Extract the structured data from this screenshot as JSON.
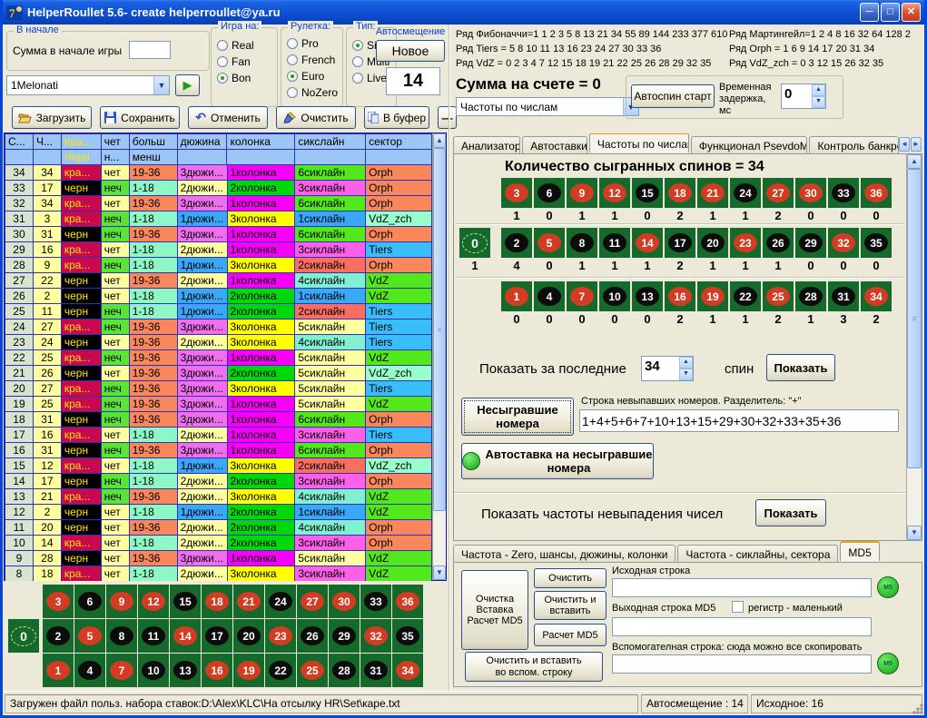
{
  "window": {
    "title": "HelperRoullet 5.6- create helperroullet@ya.ru"
  },
  "colors": {
    "red_cell": "#C9094E",
    "black_cell": "#000000",
    "cell_text_yellow": "#FFE400",
    "even": "#FFFFA0",
    "odd": "#5BE438",
    "low": "#8FF7C6",
    "high": "#F8875C",
    "dozen1": "#3AA7F8",
    "dozen2": "#FFFFA0",
    "dozen3": "#EF6FEF",
    "col1": "#F800F8",
    "col2": "#00D80C",
    "col3": "#FFFF00",
    "six1": "#3AA7F8",
    "six2": "#F86F60",
    "six3": "#FA60E8",
    "six4": "#80F0D0",
    "six5": "#FFFFA0",
    "six6": "#52E81C",
    "sector_Orph": "#F8875C",
    "sector_VdZ": "#52E81C",
    "sector_Tiers": "#38BEF8",
    "sector_VdZ_zch": "#98FFC8",
    "header": "#9CC6F8",
    "spin_col": "#D6E4D0",
    "num_col": "#FFFFA0",
    "board_green": "#15692A",
    "red_circle": "#D13C22",
    "black_circle": "#0C0C0C"
  },
  "top_left": {
    "start_group": {
      "legend": "В начале",
      "label": "Сумма в начале игры",
      "input_value": ""
    },
    "preset_combo": {
      "value": "1Melonati"
    },
    "groups": [
      {
        "legend": "Игра на:",
        "options": [
          "Real",
          "Fan",
          "Bon"
        ],
        "selected": "Bon"
      },
      {
        "legend": "Рулетка:",
        "options": [
          "Pro",
          "French",
          "Euro",
          "NoZero"
        ],
        "selected": "Euro"
      },
      {
        "legend": "Тип:",
        "options": [
          "Singl",
          "Multi",
          "Live"
        ],
        "selected": "Singl"
      }
    ],
    "autoshift": {
      "label": "Автосмещение",
      "button": "Новое",
      "value": "14"
    },
    "toolbar": [
      "Загрузить",
      "Сохранить",
      "Отменить",
      "Очистить",
      "В буфер",
      "—"
    ]
  },
  "series_info": {
    "left": [
      "Ряд Фибоначчи=1 1 2 3 5 8 13 21 34 55 89 144 233 377 610",
      "Ряд Tiers = 5 8 10 11 13 16 23 24 27 30 33 36",
      "Ряд VdZ = 0 2 3 4 7 12 15 18 19 21 22 25 26 28 29 32 35"
    ],
    "right": [
      "Ряд Мартингейл=1 2 4 8 16 32 64 128 2",
      "Ряд Orph = 1 6 9 14 17 20 31 34",
      "Ряд VdZ_zch = 0 3 12 15 26 32 35"
    ]
  },
  "account": {
    "sum_label": "Сумма на счете = 0",
    "mode_combo": "Частоты по числам",
    "autospin_button": "Автоспин старт",
    "delay_label": "Временная задержка, мс",
    "delay_value": "0"
  },
  "tabs": {
    "items": [
      "Анализатор",
      "Автоставки",
      "Частоты по числам",
      "Функционал PsevdoMS",
      "Контроль банкро"
    ],
    "active": "Частоты по числам"
  },
  "freq_tab": {
    "title": "Количество сыгранных спинов = 34",
    "board": {
      "zero": {
        "number": 0,
        "freq": 1
      },
      "rows": [
        {
          "numbers": [
            3,
            6,
            9,
            12,
            15,
            18,
            21,
            24,
            27,
            30,
            33,
            36
          ],
          "freqs": [
            1,
            0,
            1,
            1,
            0,
            2,
            1,
            1,
            2,
            0,
            0,
            0
          ]
        },
        {
          "numbers": [
            2,
            5,
            8,
            11,
            14,
            17,
            20,
            23,
            26,
            29,
            32,
            35
          ],
          "freqs": [
            4,
            0,
            1,
            1,
            1,
            2,
            1,
            1,
            1,
            0,
            0,
            0
          ]
        },
        {
          "numbers": [
            1,
            4,
            7,
            10,
            13,
            16,
            19,
            22,
            25,
            28,
            31,
            34
          ],
          "freqs": [
            0,
            0,
            0,
            0,
            0,
            2,
            1,
            1,
            2,
            1,
            3,
            2
          ]
        }
      ],
      "red_numbers": [
        1,
        3,
        5,
        7,
        9,
        12,
        14,
        16,
        18,
        19,
        21,
        23,
        25,
        27,
        30,
        32,
        34,
        36
      ]
    },
    "show_last": {
      "label_before": "Показать за последние",
      "value": "34",
      "label_after": "спин",
      "button": "Показать"
    },
    "missed": {
      "button": "Несыгравшие номера",
      "input_label": "Строка невыпавших номеров. Разделитель: \"+\"",
      "input_value": "1+4+5+6+7+10+13+15+29+30+32+33+35+36",
      "autobet_button": "Автоставка на несыгравшие номера"
    },
    "freq_missed": {
      "label": "Показать частоты невыпадения чисел",
      "button": "Показать"
    }
  },
  "bottom_tabs": {
    "items": [
      "Частота - Zero, шансы, дюжины, колонки",
      "Частота - сиклайны, сектора",
      "MD5"
    ],
    "active": "MD5"
  },
  "md5": {
    "big_button": "Очистка\nВставка\nРасчет MD5",
    "buttons": [
      "Очистить",
      "Очистить и вставить",
      "Расчет MD5"
    ],
    "bottom_button": "Очистить и  вставить\nво вспом. строку",
    "source_label": "Исходная строка",
    "source_value": "",
    "out_label": "Выходная строка MD5",
    "out_value": "",
    "case_checkbox": "регистр  - маленький",
    "aux_label": "Вспомогателная строка: сюда можно все скопировать",
    "aux_value": ""
  },
  "history_table": {
    "headers_line1": [
      "С...",
      "Ч...",
      "Кра...",
      "чет",
      "больш",
      "дюжина",
      "колонка",
      "сикслайн",
      "сектор"
    ],
    "headers_line2": [
      "",
      "",
      "Черн",
      "н...",
      "менш",
      "",
      "",
      "",
      ""
    ],
    "rows": [
      [
        34,
        34,
        "кра...",
        "чет",
        "19-36",
        "3дюжи...",
        "1колонка",
        "6сиклайн",
        "Orph"
      ],
      [
        33,
        17,
        "черн",
        "неч",
        "1-18",
        "2дюжи...",
        "2колонка",
        "3сиклайн",
        "Orph"
      ],
      [
        32,
        34,
        "кра...",
        "чет",
        "19-36",
        "3дюжи...",
        "1колонка",
        "6сиклайн",
        "Orph"
      ],
      [
        31,
        3,
        "кра...",
        "неч",
        "1-18",
        "1дюжи...",
        "3колонка",
        "1сиклайн",
        "VdZ_zch"
      ],
      [
        30,
        31,
        "черн",
        "неч",
        "19-36",
        "3дюжи...",
        "1колонка",
        "6сиклайн",
        "Orph"
      ],
      [
        29,
        16,
        "кра...",
        "чет",
        "1-18",
        "2дюжи...",
        "1колонка",
        "3сиклайн",
        "Tiers"
      ],
      [
        28,
        9,
        "кра...",
        "неч",
        "1-18",
        "1дюжи...",
        "3колонка",
        "2сиклайн",
        "Orph"
      ],
      [
        27,
        22,
        "черн",
        "чет",
        "19-36",
        "2дюжи...",
        "1колонка",
        "4сиклайн",
        "VdZ"
      ],
      [
        26,
        2,
        "черн",
        "чет",
        "1-18",
        "1дюжи...",
        "2колонка",
        "1сиклайн",
        "VdZ"
      ],
      [
        25,
        11,
        "черн",
        "неч",
        "1-18",
        "1дюжи...",
        "2колонка",
        "2сиклайн",
        "Tiers"
      ],
      [
        24,
        27,
        "кра...",
        "неч",
        "19-36",
        "3дюжи...",
        "3колонка",
        "5сиклайн",
        "Tiers"
      ],
      [
        23,
        24,
        "черн",
        "чет",
        "19-36",
        "2дюжи...",
        "3колонка",
        "4сиклайн",
        "Tiers"
      ],
      [
        22,
        25,
        "кра...",
        "неч",
        "19-36",
        "3дюжи...",
        "1колонка",
        "5сиклайн",
        "VdZ"
      ],
      [
        21,
        26,
        "черн",
        "чет",
        "19-36",
        "3дюжи...",
        "2колонка",
        "5сиклайн",
        "VdZ_zch"
      ],
      [
        20,
        27,
        "кра...",
        "неч",
        "19-36",
        "3дюжи...",
        "3колонка",
        "5сиклайн",
        "Tiers"
      ],
      [
        19,
        25,
        "кра...",
        "неч",
        "19-36",
        "3дюжи...",
        "1колонка",
        "5сиклайн",
        "VdZ"
      ],
      [
        18,
        31,
        "черн",
        "неч",
        "19-36",
        "3дюжи...",
        "1колонка",
        "6сиклайн",
        "Orph"
      ],
      [
        17,
        16,
        "кра...",
        "чет",
        "1-18",
        "2дюжи...",
        "1колонка",
        "3сиклайн",
        "Tiers"
      ],
      [
        16,
        31,
        "черн",
        "неч",
        "19-36",
        "3дюжи...",
        "1колонка",
        "6сиклайн",
        "Orph"
      ],
      [
        15,
        12,
        "кра...",
        "чет",
        "1-18",
        "1дюжи...",
        "3колонка",
        "2сиклайн",
        "VdZ_zch"
      ],
      [
        14,
        17,
        "черн",
        "неч",
        "1-18",
        "2дюжи...",
        "2колонка",
        "3сиклайн",
        "Orph"
      ],
      [
        13,
        21,
        "кра...",
        "неч",
        "19-36",
        "2дюжи...",
        "3колонка",
        "4сиклайн",
        "VdZ"
      ],
      [
        12,
        2,
        "черн",
        "чет",
        "1-18",
        "1дюжи...",
        "2колонка",
        "1сиклайн",
        "VdZ"
      ],
      [
        11,
        20,
        "черн",
        "чет",
        "19-36",
        "2дюжи...",
        "2колонка",
        "4сиклайн",
        "Orph"
      ],
      [
        10,
        14,
        "кра...",
        "чет",
        "1-18",
        "2дюжи...",
        "2колонка",
        "3сиклайн",
        "Orph"
      ],
      [
        9,
        28,
        "черн",
        "чет",
        "19-36",
        "3дюжи...",
        "1колонка",
        "5сиклайн",
        "VdZ"
      ],
      [
        8,
        18,
        "кра...",
        "чет",
        "1-18",
        "2дюжи...",
        "3колонка",
        "3сиклайн",
        "VdZ"
      ]
    ]
  },
  "status_bar": {
    "file": "Загружен файл польз. набора ставок:D:\\Alex\\KLC\\На отсылку HR\\Set\\каре.txt",
    "autoshift": "Автосмещение : 14",
    "initial": "Исходное: 16"
  }
}
